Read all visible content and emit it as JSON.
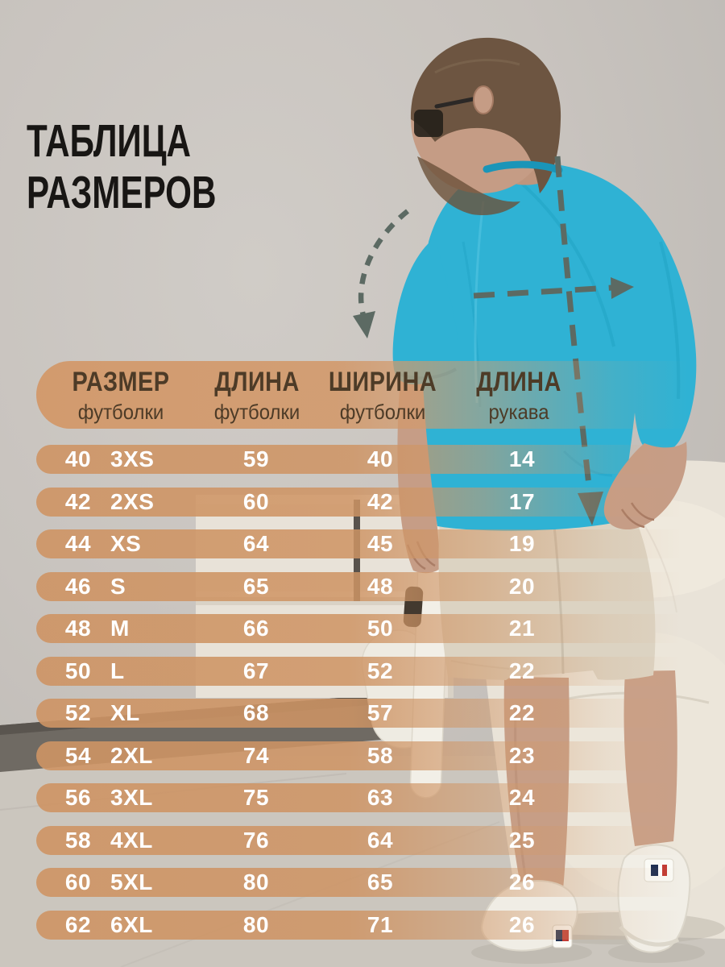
{
  "title": {
    "line1": "ТАБЛИЦА",
    "line2": "РАЗМЕРОВ"
  },
  "table": {
    "headers": [
      {
        "main": "РАЗМЕР",
        "sub": "футболки"
      },
      {
        "main": "ДЛИНА",
        "sub": "футболки"
      },
      {
        "main": "ШИРИНА",
        "sub": "футболки"
      },
      {
        "main": "ДЛИНА",
        "sub": "рукава"
      }
    ],
    "rows": [
      {
        "ru": "40",
        "intl": "3XS",
        "length": "59",
        "width": "40",
        "sleeve": "14"
      },
      {
        "ru": "42",
        "intl": "2XS",
        "length": "60",
        "width": "42",
        "sleeve": "17"
      },
      {
        "ru": "44",
        "intl": "XS",
        "length": "64",
        "width": "45",
        "sleeve": "19"
      },
      {
        "ru": "46",
        "intl": "S",
        "length": "65",
        "width": "48",
        "sleeve": "20"
      },
      {
        "ru": "48",
        "intl": "M",
        "length": "66",
        "width": "50",
        "sleeve": "21"
      },
      {
        "ru": "50",
        "intl": "L",
        "length": "67",
        "width": "52",
        "sleeve": "22"
      },
      {
        "ru": "52",
        "intl": "XL",
        "length": "68",
        "width": "57",
        "sleeve": "22"
      },
      {
        "ru": "54",
        "intl": "2XL",
        "length": "74",
        "width": "58",
        "sleeve": "23"
      },
      {
        "ru": "56",
        "intl": "3XL",
        "length": "75",
        "width": "63",
        "sleeve": "24"
      },
      {
        "ru": "58",
        "intl": "4XL",
        "length": "76",
        "width": "64",
        "sleeve": "25"
      },
      {
        "ru": "60",
        "intl": "5XL",
        "length": "80",
        "width": "65",
        "sleeve": "26"
      },
      {
        "ru": "62",
        "intl": "6XL",
        "length": "80",
        "width": "71",
        "sleeve": "26"
      }
    ]
  },
  "chart_data": {
    "type": "table",
    "title": "ТАБЛИЦА РАЗМЕРОВ",
    "columns": [
      "РАЗМЕР футболки (RU)",
      "РАЗМЕР футболки (INT)",
      "ДЛИНА футболки",
      "ШИРИНА футболки",
      "ДЛИНА рукава"
    ],
    "rows": [
      [
        40,
        "3XS",
        59,
        40,
        14
      ],
      [
        42,
        "2XS",
        60,
        42,
        17
      ],
      [
        44,
        "XS",
        64,
        45,
        19
      ],
      [
        46,
        "S",
        65,
        48,
        20
      ],
      [
        48,
        "M",
        66,
        50,
        21
      ],
      [
        50,
        "L",
        67,
        52,
        22
      ],
      [
        52,
        "XL",
        68,
        57,
        22
      ],
      [
        54,
        "2XL",
        74,
        58,
        23
      ],
      [
        56,
        "3XL",
        75,
        63,
        24
      ],
      [
        58,
        "4XL",
        76,
        64,
        25
      ],
      [
        60,
        "5XL",
        80,
        65,
        26
      ],
      [
        62,
        "6XL",
        80,
        71,
        26
      ]
    ]
  },
  "colors": {
    "band_tan": "#ce9464",
    "header_text": "#4d3b27",
    "row_text": "#ffffff",
    "title_text": "#181614",
    "tshirt": "#2fb2d4",
    "arrow": "#5c6a63",
    "wall": "#c8c3be"
  },
  "photo": {
    "measure_arrows": [
      "sleeve-length-arrow",
      "width-arrow",
      "length-arrow"
    ]
  }
}
